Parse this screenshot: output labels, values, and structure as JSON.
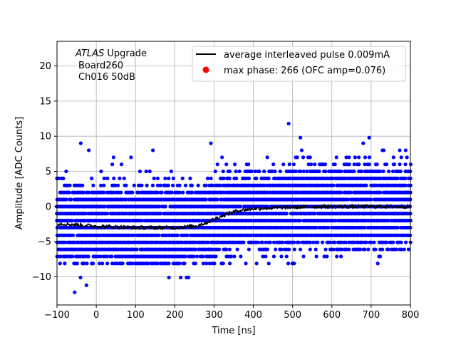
{
  "chart_data": {
    "type": "scatter",
    "xlabel": "Time [ns]",
    "ylabel": "Amplitude [ADC Counts]",
    "xlim": [
      -100,
      800
    ],
    "ylim": [
      -14,
      23.5
    ],
    "x_ticks": [
      -100,
      0,
      100,
      200,
      300,
      400,
      500,
      600,
      700,
      800
    ],
    "y_ticks": [
      -10,
      -5,
      0,
      5,
      10,
      15,
      20
    ],
    "x_tick_labels": [
      "−100",
      "0",
      "100",
      "200",
      "300",
      "400",
      "500",
      "600",
      "700",
      "800"
    ],
    "y_tick_labels": [
      "−10",
      "−5",
      "0",
      "5",
      "10",
      "15",
      "20"
    ],
    "grid": true,
    "legend_position": "top-right",
    "annotation": {
      "experiment": "ATLAS",
      "experiment_suffix": " Upgrade",
      "line2": "Board260",
      "line3": "Ch016 50dB"
    },
    "series": [
      {
        "name": "average interleaved pulse 0.009mA",
        "kind": "line",
        "color": "#000000",
        "x": [
          -100,
          -50,
          0,
          50,
          100,
          150,
          200,
          250,
          280,
          300,
          330,
          360,
          400,
          450,
          500,
          550,
          600,
          650,
          700,
          750,
          800
        ],
        "y": [
          -2.4,
          -2.6,
          -2.8,
          -2.9,
          -3.0,
          -3.0,
          -3.0,
          -2.8,
          -2.3,
          -1.8,
          -1.1,
          -0.6,
          -0.3,
          -0.2,
          -0.1,
          0.0,
          0.0,
          0.0,
          0.0,
          0.0,
          0.0
        ]
      },
      {
        "name": "max phase: 266 (OFC amp=0.076)",
        "kind": "marker",
        "color": "#ff0000",
        "x": [],
        "y": []
      },
      {
        "name": "",
        "kind": "scatter",
        "color": "#0000ff",
        "levels": [
          -8.1,
          -7.1,
          -6.1,
          -5.1,
          -4.1,
          -3.0,
          -2.0,
          -1.0,
          0.0,
          1.0,
          2.0,
          3.0,
          4.0,
          5.0,
          6.0,
          7.0,
          8.0,
          9.0
        ],
        "x_range": [
          -100,
          800
        ],
        "outliers_x": [
          -55,
          -40,
          -25,
          185,
          215,
          230,
          235,
          490,
          520,
          695
        ],
        "outliers_y": [
          -12.2,
          -10.1,
          -11.2,
          -10.1,
          -10.1,
          -10.1,
          -10.1,
          11.8,
          9.8,
          9.8
        ]
      }
    ]
  }
}
